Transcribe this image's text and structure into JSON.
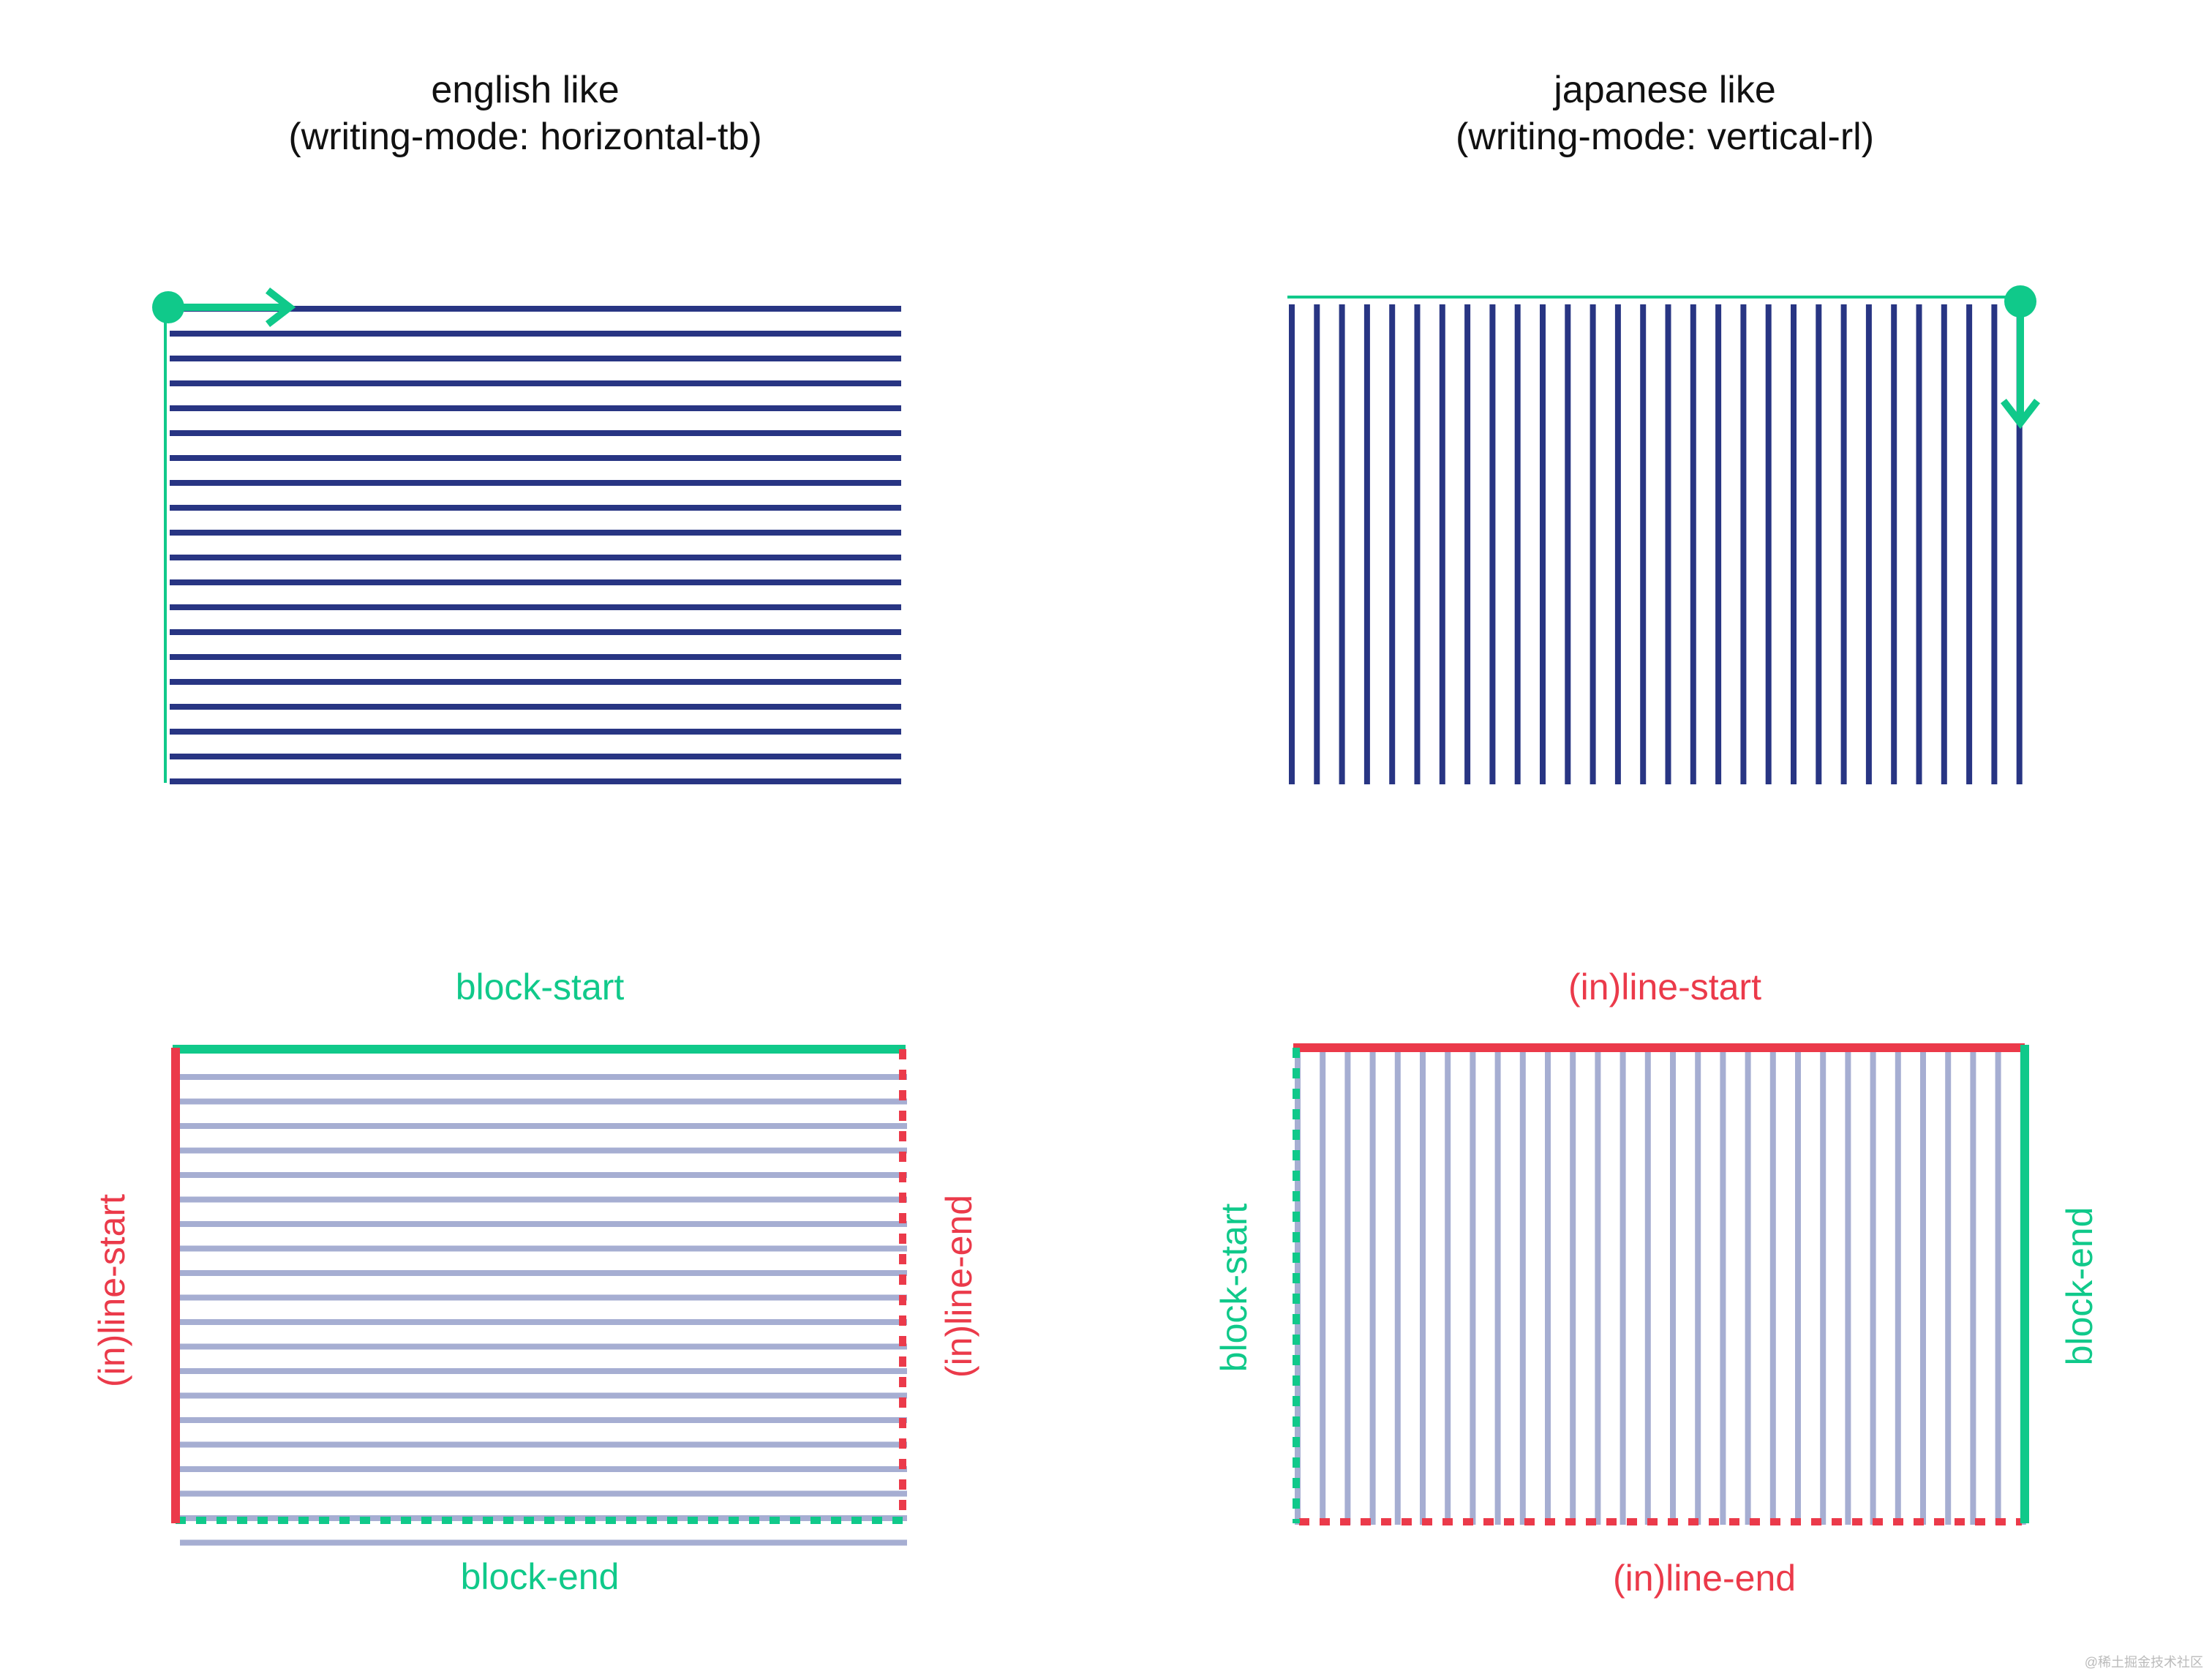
{
  "colors": {
    "navy": "#283583",
    "light_navy": "#A6AED2",
    "green": "#10C98A",
    "red": "#EB3A4A",
    "title_text": "#111111"
  },
  "panels": {
    "english": {
      "title_line1": "english like",
      "title_line2": "(writing-mode: horizontal-tb)"
    },
    "japanese": {
      "title_line1": "japanese like",
      "title_line2": "(writing-mode: vertical-rl)"
    }
  },
  "labels": {
    "english": {
      "top": "block-start",
      "bottom": "block-end",
      "left": "(in)line-start",
      "right": "(in)line-end"
    },
    "japanese": {
      "top": "(in)line-start",
      "bottom": "(in)line-end",
      "left": "block-start",
      "right": "block-end"
    }
  },
  "diagram": {
    "english_line_count": 20,
    "japanese_line_count": 30
  },
  "watermark": "@稀土掘金技术社区"
}
